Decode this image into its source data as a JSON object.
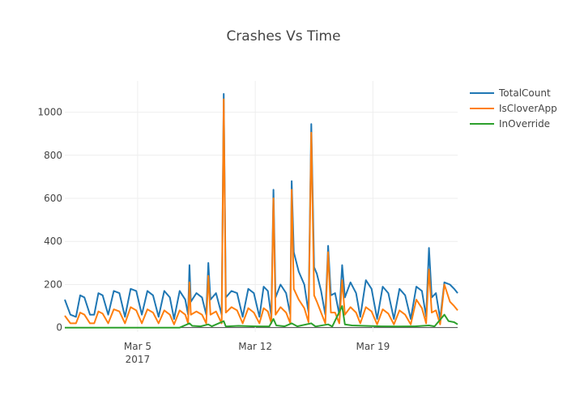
{
  "chart_data": {
    "type": "line",
    "title": "Crashes Vs Time",
    "xlabel": "",
    "ylabel": "",
    "x_range": [
      "2017-02-28 16:00",
      "2017-03-24 01:00"
    ],
    "ylim": [
      -20,
      1145
    ],
    "grid": true,
    "legend_position": "top-right",
    "x_ticks": [
      {
        "date": "2017-03-05",
        "label": "Mar 5",
        "sublabel": "2017"
      },
      {
        "date": "2017-03-12",
        "label": "Mar 12",
        "sublabel": ""
      },
      {
        "date": "2017-03-19",
        "label": "Mar 19",
        "sublabel": ""
      }
    ],
    "y_ticks": [
      0,
      200,
      400,
      600,
      800,
      1000
    ],
    "series": [
      {
        "name": "TotalCount",
        "color": "#1f77b4",
        "points": [
          [
            "2017-02-28 16:00",
            130
          ],
          [
            "2017-03-01 00:00",
            60
          ],
          [
            "2017-03-01 08:00",
            50
          ],
          [
            "2017-03-01 14:00",
            150
          ],
          [
            "2017-03-01 20:00",
            140
          ],
          [
            "2017-03-02 04:00",
            60
          ],
          [
            "2017-03-02 10:00",
            60
          ],
          [
            "2017-03-02 16:00",
            160
          ],
          [
            "2017-03-02 22:00",
            150
          ],
          [
            "2017-03-03 06:00",
            60
          ],
          [
            "2017-03-03 14:00",
            170
          ],
          [
            "2017-03-03 22:00",
            160
          ],
          [
            "2017-03-04 06:00",
            50
          ],
          [
            "2017-03-04 14:00",
            180
          ],
          [
            "2017-03-04 22:00",
            170
          ],
          [
            "2017-03-05 06:00",
            60
          ],
          [
            "2017-03-05 14:00",
            170
          ],
          [
            "2017-03-05 22:00",
            150
          ],
          [
            "2017-03-06 06:00",
            50
          ],
          [
            "2017-03-06 14:00",
            170
          ],
          [
            "2017-03-06 22:00",
            140
          ],
          [
            "2017-03-07 04:00",
            40
          ],
          [
            "2017-03-07 12:00",
            170
          ],
          [
            "2017-03-07 20:00",
            130
          ],
          [
            "2017-03-08 00:00",
            60
          ],
          [
            "2017-03-08 02:00",
            290
          ],
          [
            "2017-03-08 04:00",
            120
          ],
          [
            "2017-03-08 12:00",
            160
          ],
          [
            "2017-03-08 20:00",
            140
          ],
          [
            "2017-03-09 02:00",
            60
          ],
          [
            "2017-03-09 05:00",
            300
          ],
          [
            "2017-03-09 08:00",
            130
          ],
          [
            "2017-03-09 16:00",
            160
          ],
          [
            "2017-03-10 00:00",
            60
          ],
          [
            "2017-03-10 03:00",
            1085
          ],
          [
            "2017-03-10 06:00",
            140
          ],
          [
            "2017-03-10 14:00",
            170
          ],
          [
            "2017-03-10 22:00",
            160
          ],
          [
            "2017-03-11 06:00",
            50
          ],
          [
            "2017-03-11 14:00",
            180
          ],
          [
            "2017-03-11 22:00",
            160
          ],
          [
            "2017-03-12 06:00",
            50
          ],
          [
            "2017-03-12 12:00",
            190
          ],
          [
            "2017-03-12 18:00",
            170
          ],
          [
            "2017-03-12 23:00",
            50
          ],
          [
            "2017-03-13 02:00",
            640
          ],
          [
            "2017-03-13 05:00",
            140
          ],
          [
            "2017-03-13 12:00",
            200
          ],
          [
            "2017-03-13 20:00",
            160
          ],
          [
            "2017-03-14 02:00",
            60
          ],
          [
            "2017-03-14 04:00",
            680
          ],
          [
            "2017-03-14 07:00",
            350
          ],
          [
            "2017-03-14 14:00",
            260
          ],
          [
            "2017-03-14 22:00",
            200
          ],
          [
            "2017-03-15 04:00",
            70
          ],
          [
            "2017-03-15 08:00",
            945
          ],
          [
            "2017-03-15 12:00",
            280
          ],
          [
            "2017-03-15 16:00",
            250
          ],
          [
            "2017-03-15 22:00",
            170
          ],
          [
            "2017-03-16 04:00",
            60
          ],
          [
            "2017-03-16 08:00",
            380
          ],
          [
            "2017-03-16 12:00",
            150
          ],
          [
            "2017-03-16 18:00",
            160
          ],
          [
            "2017-03-17 00:00",
            60
          ],
          [
            "2017-03-17 04:00",
            290
          ],
          [
            "2017-03-17 08:00",
            140
          ],
          [
            "2017-03-17 16:00",
            210
          ],
          [
            "2017-03-18 00:00",
            160
          ],
          [
            "2017-03-18 06:00",
            50
          ],
          [
            "2017-03-18 14:00",
            220
          ],
          [
            "2017-03-18 22:00",
            180
          ],
          [
            "2017-03-19 06:00",
            40
          ],
          [
            "2017-03-19 14:00",
            190
          ],
          [
            "2017-03-19 22:00",
            160
          ],
          [
            "2017-03-20 06:00",
            40
          ],
          [
            "2017-03-20 14:00",
            180
          ],
          [
            "2017-03-20 22:00",
            150
          ],
          [
            "2017-03-21 06:00",
            40
          ],
          [
            "2017-03-21 14:00",
            190
          ],
          [
            "2017-03-21 22:00",
            170
          ],
          [
            "2017-03-22 04:00",
            50
          ],
          [
            "2017-03-22 08:00",
            370
          ],
          [
            "2017-03-22 12:00",
            140
          ],
          [
            "2017-03-22 18:00",
            160
          ],
          [
            "2017-03-23 00:00",
            40
          ],
          [
            "2017-03-23 06:00",
            210
          ],
          [
            "2017-03-23 14:00",
            200
          ],
          [
            "2017-03-23 20:00",
            180
          ],
          [
            "2017-03-24 01:00",
            160
          ]
        ]
      },
      {
        "name": "IsCloverApp",
        "color": "#ff7f0e",
        "points": [
          [
            "2017-02-28 16:00",
            55
          ],
          [
            "2017-03-01 00:00",
            20
          ],
          [
            "2017-03-01 08:00",
            20
          ],
          [
            "2017-03-01 14:00",
            70
          ],
          [
            "2017-03-01 20:00",
            60
          ],
          [
            "2017-03-02 04:00",
            20
          ],
          [
            "2017-03-02 10:00",
            20
          ],
          [
            "2017-03-02 16:00",
            75
          ],
          [
            "2017-03-02 22:00",
            65
          ],
          [
            "2017-03-03 06:00",
            20
          ],
          [
            "2017-03-03 14:00",
            85
          ],
          [
            "2017-03-03 22:00",
            75
          ],
          [
            "2017-03-04 06:00",
            20
          ],
          [
            "2017-03-04 14:00",
            95
          ],
          [
            "2017-03-04 22:00",
            80
          ],
          [
            "2017-03-05 06:00",
            20
          ],
          [
            "2017-03-05 14:00",
            85
          ],
          [
            "2017-03-05 22:00",
            70
          ],
          [
            "2017-03-06 06:00",
            20
          ],
          [
            "2017-03-06 14:00",
            80
          ],
          [
            "2017-03-06 22:00",
            60
          ],
          [
            "2017-03-07 04:00",
            15
          ],
          [
            "2017-03-07 12:00",
            80
          ],
          [
            "2017-03-07 20:00",
            60
          ],
          [
            "2017-03-08 00:00",
            20
          ],
          [
            "2017-03-08 02:00",
            210
          ],
          [
            "2017-03-08 04:00",
            60
          ],
          [
            "2017-03-08 12:00",
            75
          ],
          [
            "2017-03-08 20:00",
            60
          ],
          [
            "2017-03-09 02:00",
            20
          ],
          [
            "2017-03-09 05:00",
            240
          ],
          [
            "2017-03-09 08:00",
            60
          ],
          [
            "2017-03-09 16:00",
            75
          ],
          [
            "2017-03-10 00:00",
            20
          ],
          [
            "2017-03-10 03:00",
            1060
          ],
          [
            "2017-03-10 06:00",
            70
          ],
          [
            "2017-03-10 14:00",
            95
          ],
          [
            "2017-03-10 22:00",
            80
          ],
          [
            "2017-03-11 06:00",
            20
          ],
          [
            "2017-03-11 14:00",
            90
          ],
          [
            "2017-03-11 22:00",
            70
          ],
          [
            "2017-03-12 06:00",
            20
          ],
          [
            "2017-03-12 12:00",
            90
          ],
          [
            "2017-03-12 18:00",
            75
          ],
          [
            "2017-03-12 23:00",
            20
          ],
          [
            "2017-03-13 02:00",
            600
          ],
          [
            "2017-03-13 05:00",
            60
          ],
          [
            "2017-03-13 12:00",
            95
          ],
          [
            "2017-03-13 20:00",
            70
          ],
          [
            "2017-03-14 02:00",
            20
          ],
          [
            "2017-03-14 04:00",
            640
          ],
          [
            "2017-03-14 07:00",
            180
          ],
          [
            "2017-03-14 14:00",
            130
          ],
          [
            "2017-03-14 22:00",
            90
          ],
          [
            "2017-03-15 04:00",
            25
          ],
          [
            "2017-03-15 08:00",
            905
          ],
          [
            "2017-03-15 12:00",
            150
          ],
          [
            "2017-03-15 16:00",
            120
          ],
          [
            "2017-03-15 22:00",
            70
          ],
          [
            "2017-03-16 04:00",
            20
          ],
          [
            "2017-03-16 08:00",
            350
          ],
          [
            "2017-03-16 12:00",
            70
          ],
          [
            "2017-03-16 18:00",
            70
          ],
          [
            "2017-03-17 00:00",
            20
          ],
          [
            "2017-03-17 04:00",
            220
          ],
          [
            "2017-03-17 08:00",
            60
          ],
          [
            "2017-03-17 16:00",
            95
          ],
          [
            "2017-03-18 00:00",
            70
          ],
          [
            "2017-03-18 06:00",
            20
          ],
          [
            "2017-03-18 14:00",
            95
          ],
          [
            "2017-03-18 22:00",
            75
          ],
          [
            "2017-03-19 06:00",
            15
          ],
          [
            "2017-03-19 14:00",
            85
          ],
          [
            "2017-03-19 22:00",
            65
          ],
          [
            "2017-03-20 06:00",
            15
          ],
          [
            "2017-03-20 14:00",
            80
          ],
          [
            "2017-03-20 22:00",
            60
          ],
          [
            "2017-03-21 06:00",
            15
          ],
          [
            "2017-03-21 14:00",
            130
          ],
          [
            "2017-03-21 22:00",
            90
          ],
          [
            "2017-03-22 04:00",
            20
          ],
          [
            "2017-03-22 08:00",
            270
          ],
          [
            "2017-03-22 12:00",
            70
          ],
          [
            "2017-03-22 18:00",
            80
          ],
          [
            "2017-03-23 00:00",
            15
          ],
          [
            "2017-03-23 06:00",
            200
          ],
          [
            "2017-03-23 14:00",
            120
          ],
          [
            "2017-03-23 20:00",
            100
          ],
          [
            "2017-03-24 01:00",
            80
          ]
        ]
      },
      {
        "name": "InOverride",
        "color": "#2ca02c",
        "points": [
          [
            "2017-02-28 16:00",
            0
          ],
          [
            "2017-03-03 00:00",
            0
          ],
          [
            "2017-03-06 00:00",
            0
          ],
          [
            "2017-03-07 12:00",
            0
          ],
          [
            "2017-03-08 02:00",
            20
          ],
          [
            "2017-03-08 06:00",
            8
          ],
          [
            "2017-03-08 18:00",
            6
          ],
          [
            "2017-03-09 05:00",
            15
          ],
          [
            "2017-03-09 10:00",
            6
          ],
          [
            "2017-03-10 03:00",
            30
          ],
          [
            "2017-03-10 06:00",
            5
          ],
          [
            "2017-03-11 00:00",
            8
          ],
          [
            "2017-03-12 00:00",
            6
          ],
          [
            "2017-03-12 20:00",
            5
          ],
          [
            "2017-03-13 02:00",
            40
          ],
          [
            "2017-03-13 06:00",
            10
          ],
          [
            "2017-03-13 18:00",
            6
          ],
          [
            "2017-03-14 04:00",
            20
          ],
          [
            "2017-03-14 12:00",
            6
          ],
          [
            "2017-03-15 08:00",
            20
          ],
          [
            "2017-03-15 14:00",
            5
          ],
          [
            "2017-03-16 08:00",
            15
          ],
          [
            "2017-03-16 14:00",
            5
          ],
          [
            "2017-03-17 04:00",
            100
          ],
          [
            "2017-03-17 08:00",
            15
          ],
          [
            "2017-03-17 18:00",
            10
          ],
          [
            "2017-03-18 12:00",
            8
          ],
          [
            "2017-03-19 12:00",
            6
          ],
          [
            "2017-03-20 12:00",
            5
          ],
          [
            "2017-03-21 12:00",
            6
          ],
          [
            "2017-03-22 08:00",
            10
          ],
          [
            "2017-03-22 16:00",
            6
          ],
          [
            "2017-03-23 06:00",
            60
          ],
          [
            "2017-03-23 12:00",
            30
          ],
          [
            "2017-03-23 20:00",
            25
          ],
          [
            "2017-03-24 01:00",
            15
          ]
        ]
      }
    ]
  }
}
